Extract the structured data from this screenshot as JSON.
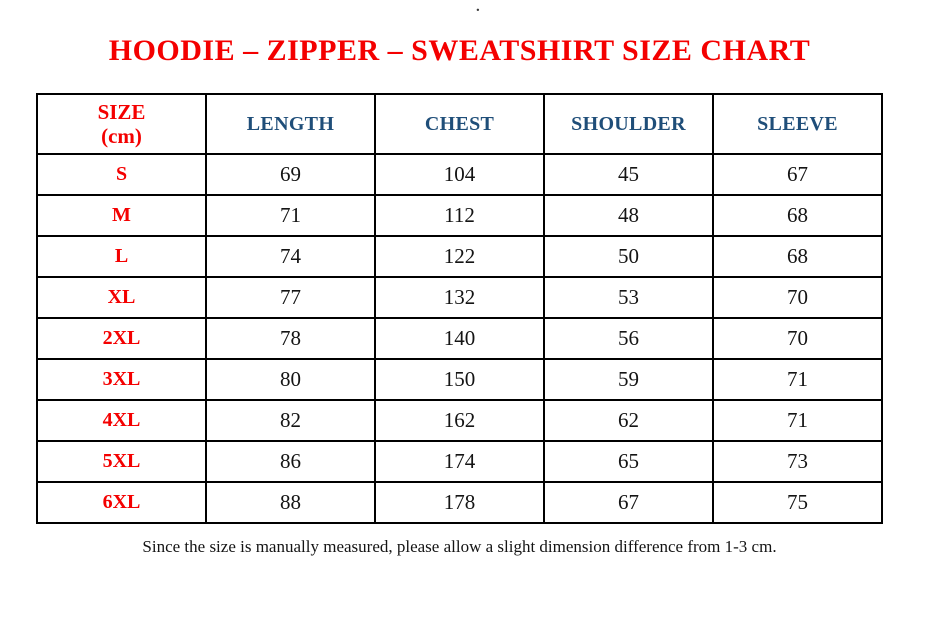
{
  "page": {
    "top_dot": ".",
    "title": "HOODIE – ZIPPER – SWEATSHIRT SIZE CHART",
    "footnote": "Since the size is manually measured, please allow a slight dimension difference from 1-3 cm."
  },
  "colors": {
    "accent_red": "#f40000",
    "header_blue": "#1f4e79",
    "body_black": "#141414",
    "border_black": "#000000",
    "background": "#ffffff"
  },
  "table": {
    "size_header": {
      "line1": "SIZE",
      "line2": "(cm)"
    },
    "columns": [
      "LENGTH",
      "CHEST",
      "SHOULDER",
      "SLEEVE"
    ],
    "rows": [
      {
        "size": "S",
        "length": "69",
        "chest": "104",
        "shoulder": "45",
        "sleeve": "67"
      },
      {
        "size": "M",
        "length": "71",
        "chest": "112",
        "shoulder": "48",
        "sleeve": "68"
      },
      {
        "size": "L",
        "length": "74",
        "chest": "122",
        "shoulder": "50",
        "sleeve": "68"
      },
      {
        "size": "XL",
        "length": "77",
        "chest": "132",
        "shoulder": "53",
        "sleeve": "70"
      },
      {
        "size": "2XL",
        "length": "78",
        "chest": "140",
        "shoulder": "56",
        "sleeve": "70"
      },
      {
        "size": "3XL",
        "length": "80",
        "chest": "150",
        "shoulder": "59",
        "sleeve": "71"
      },
      {
        "size": "4XL",
        "length": "82",
        "chest": "162",
        "shoulder": "62",
        "sleeve": "71"
      },
      {
        "size": "5XL",
        "length": "86",
        "chest": "174",
        "shoulder": "65",
        "sleeve": "73"
      },
      {
        "size": "6XL",
        "length": "88",
        "chest": "178",
        "shoulder": "67",
        "sleeve": "75"
      }
    ]
  },
  "chart_data": {
    "type": "table",
    "title": "HOODIE – ZIPPER – SWEATSHIRT SIZE CHART",
    "columns": [
      "SIZE (cm)",
      "LENGTH",
      "CHEST",
      "SHOULDER",
      "SLEEVE"
    ],
    "rows": [
      [
        "S",
        69,
        104,
        45,
        67
      ],
      [
        "M",
        71,
        112,
        48,
        68
      ],
      [
        "L",
        74,
        122,
        50,
        68
      ],
      [
        "XL",
        77,
        132,
        53,
        70
      ],
      [
        "2XL",
        78,
        140,
        56,
        70
      ],
      [
        "3XL",
        80,
        150,
        59,
        71
      ],
      [
        "4XL",
        82,
        162,
        62,
        71
      ],
      [
        "5XL",
        86,
        174,
        65,
        73
      ],
      [
        "6XL",
        88,
        178,
        67,
        75
      ]
    ]
  }
}
